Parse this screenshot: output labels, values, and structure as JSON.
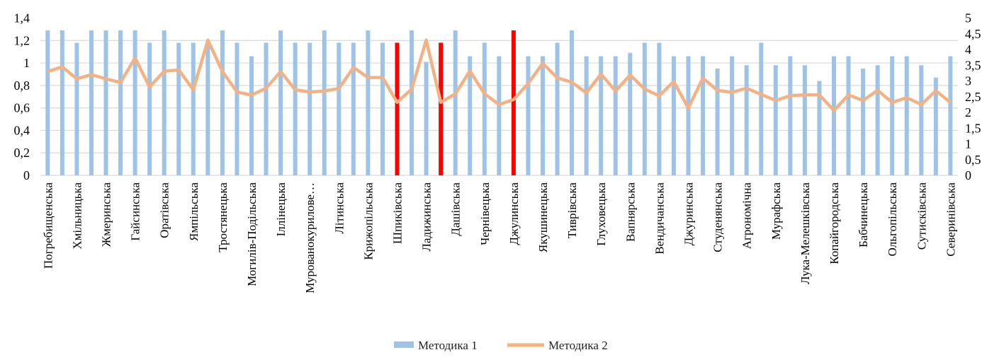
{
  "chart_data": {
    "type": "bar+line",
    "title": "",
    "categories": [
      "Погребищенська",
      "",
      "Хмільницька",
      "",
      "Жмеринська",
      "",
      "Гайсинська",
      "",
      "Оратівська",
      "",
      "Ямпільська",
      "",
      "Тростянецька",
      "",
      "Могилів-Подільська",
      "",
      "Іллінецька",
      "",
      "Мурованокурилове…",
      "",
      "Літинська",
      "",
      "Крижопільська",
      "",
      "Шпиківська",
      "",
      "Ладижинська",
      "",
      "Дашівська",
      "",
      "Чернівецька",
      "",
      "Джулинська",
      "",
      "Якушинецька",
      "",
      "Тиврівська",
      "",
      "Глуховецька",
      "",
      "Вапнярська",
      "",
      "Вендичанська",
      "",
      "Джуринська",
      "",
      "Студенянська",
      "",
      "Агрономічна",
      "",
      "Мурафська",
      "",
      "Лука-Мелешківська",
      "",
      "Копайгородська",
      "",
      "Бабчинецька",
      "",
      "Ольгопільська",
      "",
      "Сутисківська",
      "",
      "Северинівська"
    ],
    "series": [
      {
        "name": "Методика 1",
        "type": "bar",
        "axis": "left",
        "color": "#9DC3E6",
        "values": [
          1.29,
          1.29,
          1.18,
          1.29,
          1.29,
          1.29,
          1.29,
          1.18,
          1.29,
          1.18,
          1.18,
          1.18,
          1.29,
          1.18,
          1.06,
          1.18,
          1.29,
          1.18,
          1.18,
          1.29,
          1.18,
          1.18,
          1.29,
          1.18,
          1.18,
          1.29,
          1.01,
          1.18,
          1.29,
          1.06,
          1.18,
          1.06,
          1.29,
          1.06,
          1.06,
          1.18,
          1.29,
          1.06,
          1.06,
          1.06,
          1.09,
          1.18,
          1.18,
          1.06,
          1.06,
          1.06,
          0.95,
          1.06,
          0.98,
          1.18,
          0.98,
          1.06,
          0.98,
          0.84,
          1.06,
          1.06,
          0.95,
          0.98,
          1.06,
          1.06,
          0.98,
          0.87,
          1.06
        ]
      },
      {
        "name": "Методика 2",
        "type": "line",
        "axis": "right",
        "color": "#F4B183",
        "values": [
          3.3,
          3.45,
          3.07,
          3.2,
          3.07,
          2.95,
          3.73,
          2.81,
          3.31,
          3.35,
          2.72,
          4.3,
          3.3,
          2.65,
          2.55,
          2.77,
          3.3,
          2.72,
          2.65,
          2.68,
          2.76,
          3.43,
          3.11,
          3.11,
          2.32,
          2.74,
          4.3,
          2.32,
          2.59,
          3.32,
          2.59,
          2.25,
          2.41,
          2.92,
          3.56,
          3.1,
          2.96,
          2.62,
          3.22,
          2.68,
          3.19,
          2.74,
          2.53,
          2.98,
          2.14,
          3.09,
          2.7,
          2.64,
          2.77,
          2.57,
          2.38,
          2.53,
          2.56,
          2.56,
          2.06,
          2.56,
          2.38,
          2.7,
          2.32,
          2.47,
          2.25,
          2.69,
          2.32
        ]
      }
    ],
    "highlighted_bars": {
      "indices": [
        24,
        27,
        32
      ],
      "color": "#FF0000"
    },
    "y_left": {
      "ylim": [
        0,
        1.4
      ],
      "ticks": [
        "0",
        "0,2",
        "0,4",
        "0,6",
        "0,8",
        "1",
        "1,2",
        "1,4"
      ]
    },
    "y_right": {
      "ylim": [
        0,
        5
      ],
      "ticks": [
        "0",
        "0,5",
        "1",
        "1,5",
        "2",
        "2,5",
        "3",
        "3,5",
        "4",
        "4,5",
        "5"
      ]
    },
    "grid": true,
    "legend_position": "bottom",
    "legend": [
      "Методика 1",
      "Методика 2"
    ]
  }
}
